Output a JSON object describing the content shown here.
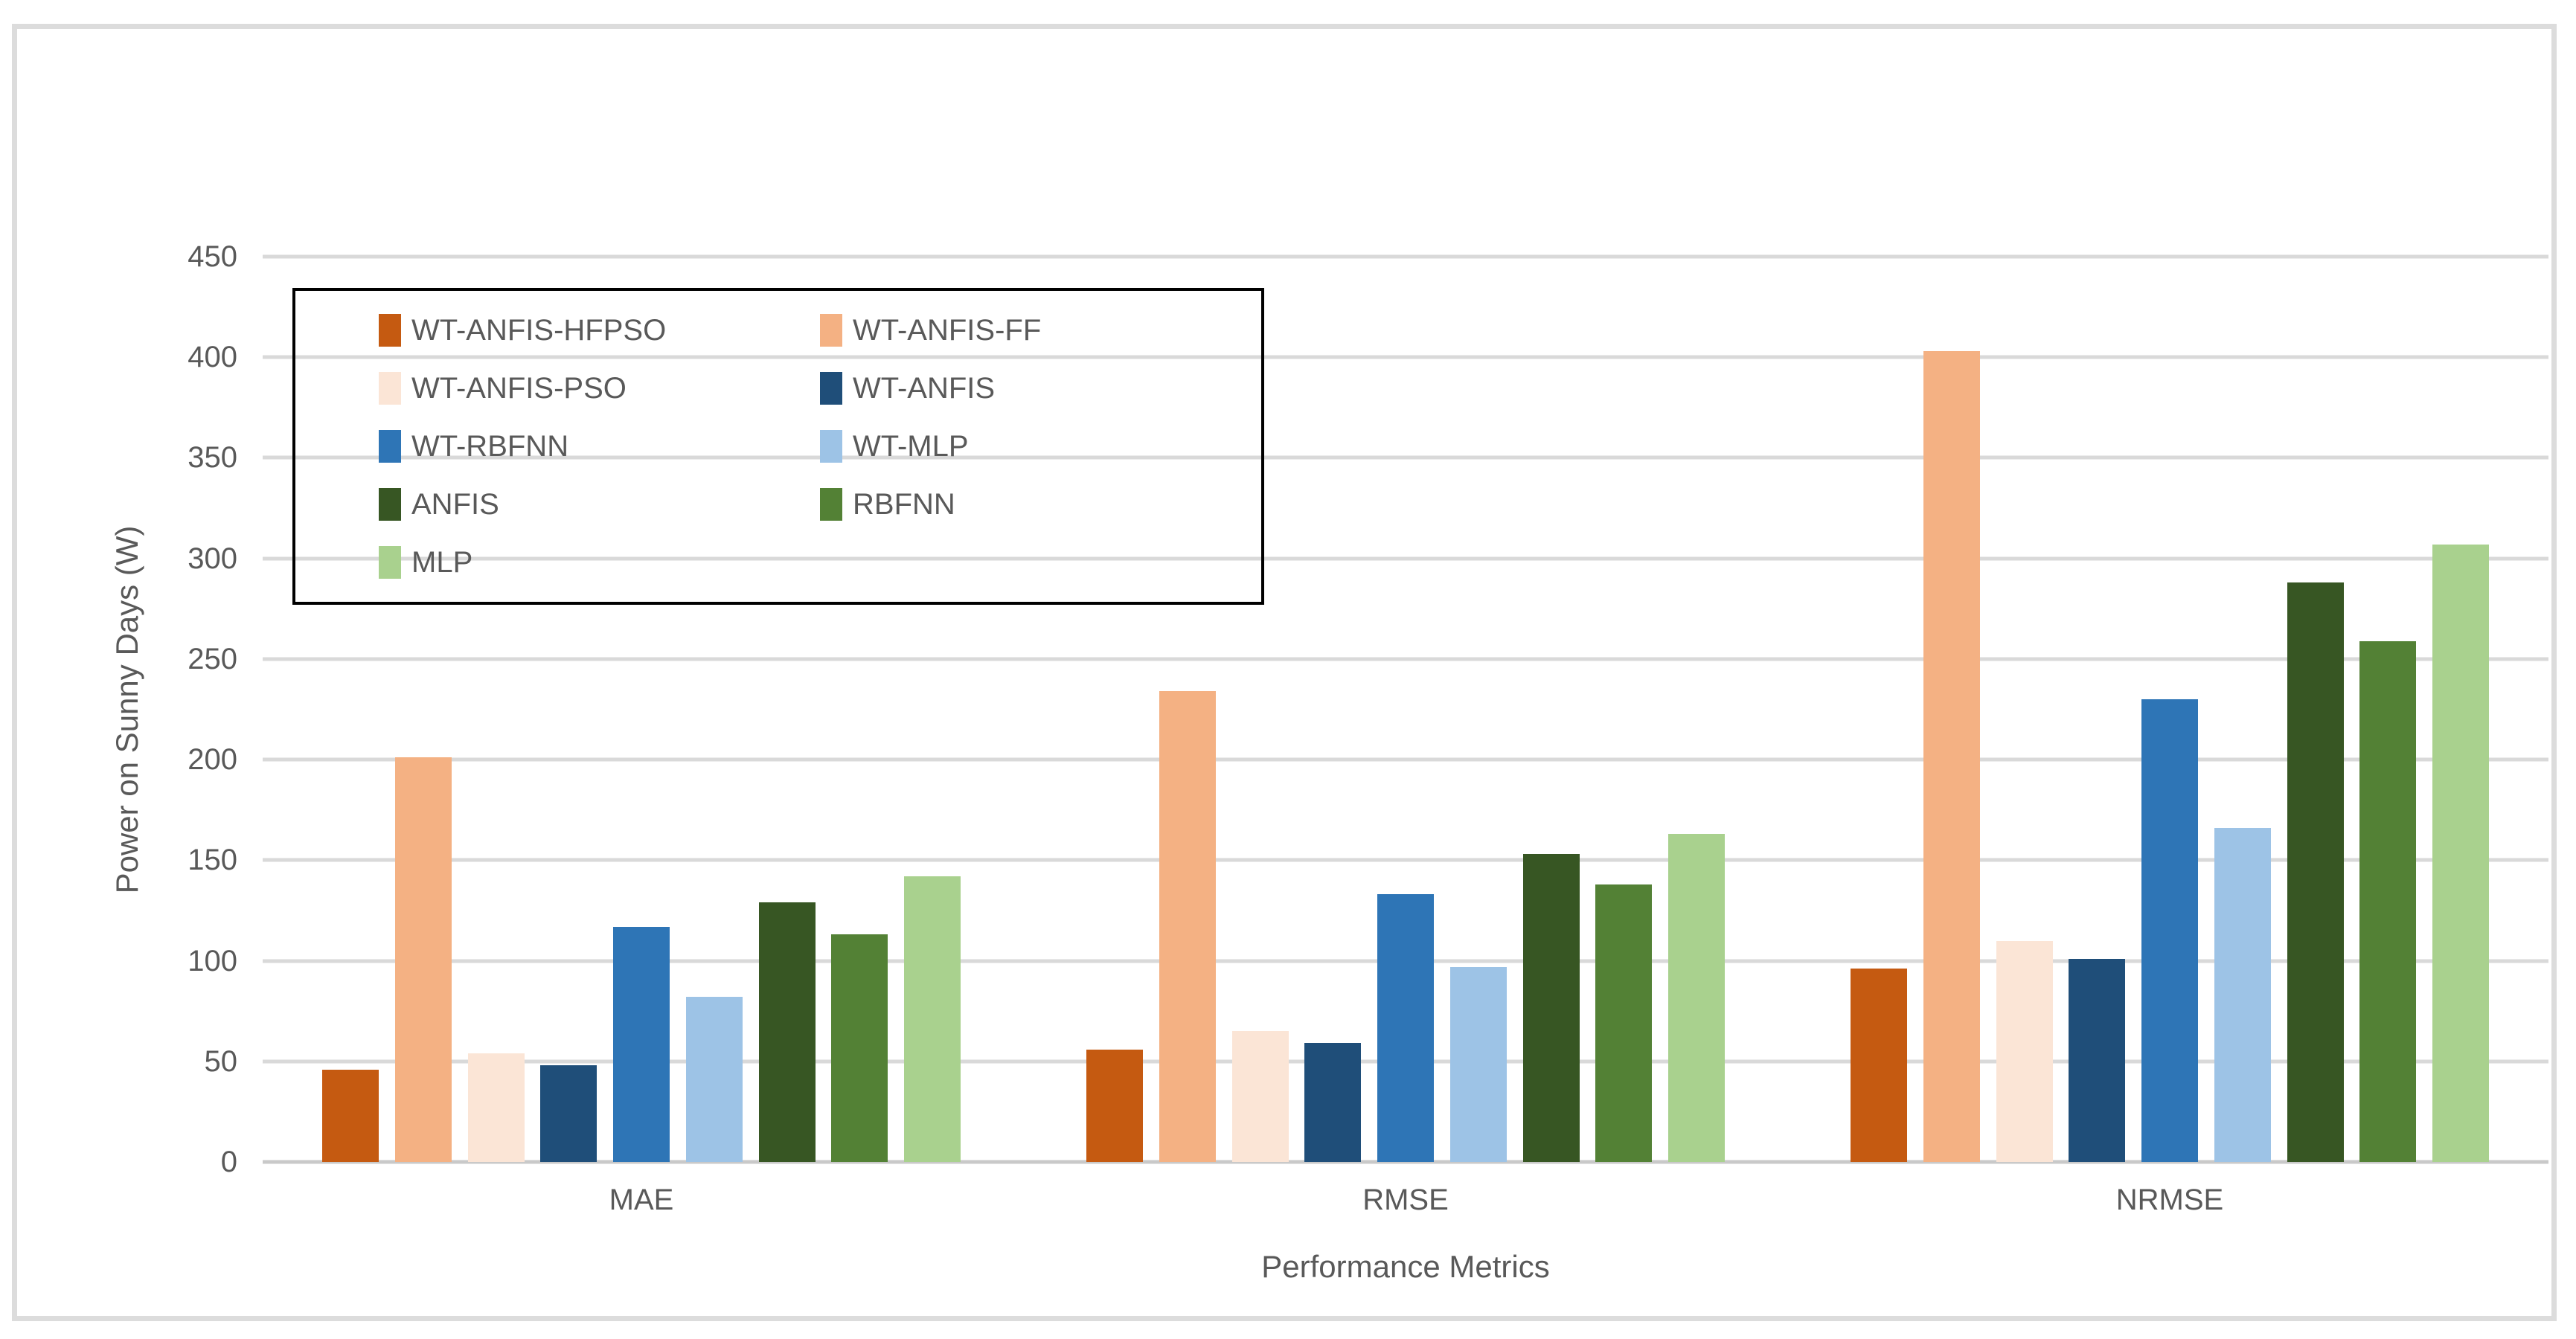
{
  "figure": {
    "background": "#ffffff",
    "border_color": "#dcdcdc",
    "text_color": "#595959",
    "gridline_color": "#d9d9d9",
    "legend_border_color": "#000000"
  },
  "chart_data": {
    "type": "bar",
    "title": "",
    "xlabel": "Performance Metrics",
    "ylabel": "Power on Sunny Days (W)",
    "categories": [
      "MAE",
      "RMSE",
      "NRMSE"
    ],
    "series": [
      {
        "name": "WT-ANFIS-HFPSO",
        "color": "#C55A11",
        "values": [
          46,
          56,
          96
        ]
      },
      {
        "name": "WT-ANFIS-FF",
        "color": "#F4B183",
        "values": [
          201,
          234,
          403
        ]
      },
      {
        "name": "WT-ANFIS-PSO",
        "color": "#FBE5D6",
        "values": [
          54,
          65,
          110
        ]
      },
      {
        "name": "WT-ANFIS",
        "color": "#1F4E79",
        "values": [
          48,
          59,
          101
        ]
      },
      {
        "name": "WT-RBFNN",
        "color": "#2E75B6",
        "values": [
          117,
          133,
          230
        ]
      },
      {
        "name": "WT-MLP",
        "color": "#9DC3E6",
        "values": [
          82,
          97,
          166
        ]
      },
      {
        "name": "ANFIS",
        "color": "#375623",
        "values": [
          129,
          153,
          288
        ]
      },
      {
        "name": "RBFNN",
        "color": "#538135",
        "values": [
          113,
          138,
          259
        ]
      },
      {
        "name": "MLP",
        "color": "#A9D18E",
        "values": [
          142,
          163,
          307
        ]
      }
    ],
    "ylim": [
      0,
      450
    ],
    "ytick_step": 50,
    "yticks": [
      0,
      50,
      100,
      150,
      200,
      250,
      300,
      350,
      400,
      450
    ],
    "grid": true,
    "legend_position": "top-left-inside",
    "legend_columns": 2
  }
}
